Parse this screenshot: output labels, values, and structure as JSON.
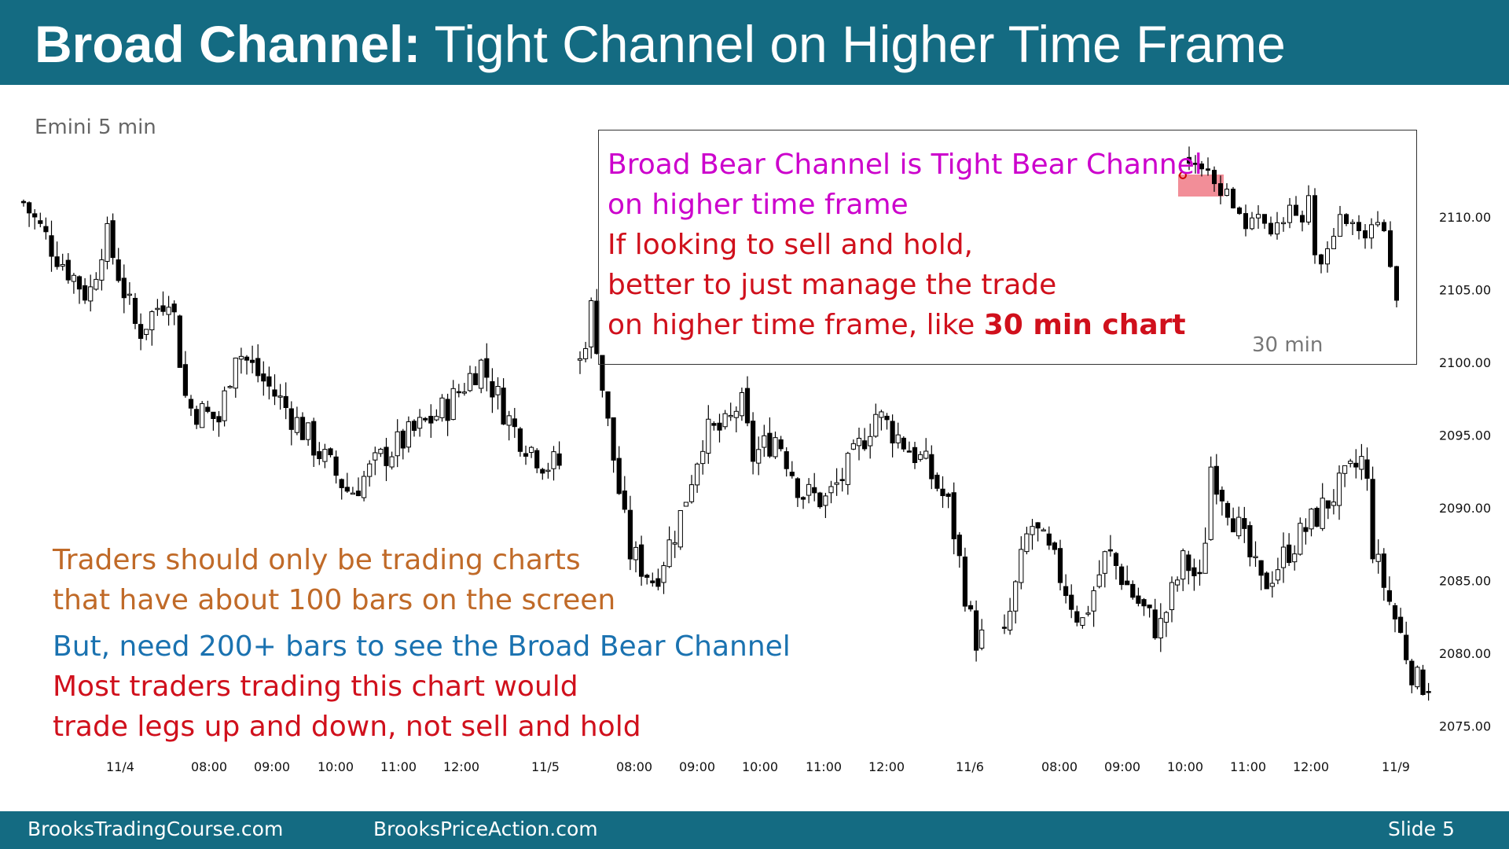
{
  "header": {
    "title_bold": "Broad Channel:",
    "title_rest": " Tight Channel on Higher Time Frame"
  },
  "ticker_label": "Emini 5 min",
  "inset": {
    "line1": "Broad Bear Channel is Tight Bear Channel",
    "line2": "on higher time frame",
    "line3": "If looking to sell and hold,",
    "line4": "better to just manage the trade",
    "line5_pre": "on higher time frame, like ",
    "line5_bold": "30 min chart",
    "timeframe_label": "30 min"
  },
  "notes": {
    "line1": "Traders should only be trading charts",
    "line2": "that have about 100 bars on the screen",
    "line3": "But, need 200+ bars to see the Broad Bear Channel",
    "line4": "Most traders trading this chart would",
    "line5": "trade legs up and down, not sell and hold"
  },
  "footer": {
    "left": "BrooksTradingCourse.com",
    "center": "BrooksPriceAction.com",
    "right": "Slide  5"
  },
  "colors": {
    "header_bg": "#146b82",
    "magenta": "#cc00cc",
    "red": "#d0101c",
    "orange": "#c06a28",
    "blue": "#1a72b0",
    "highlight": "#f07a86"
  },
  "chart_data": {
    "type": "candlestick",
    "title": "",
    "xlabel": "",
    "ylabel": "",
    "ylim": [
      2075.0,
      2115.0
    ],
    "y_ticks": [
      "2075.00",
      "2080.00",
      "2085.00",
      "2090.00",
      "2095.00",
      "2100.00",
      "2105.00",
      "2110.00"
    ],
    "x_ticks": [
      "11/4",
      "08:00",
      "09:00",
      "10:00",
      "11:00",
      "12:00",
      "11/5",
      "08:00",
      "09:00",
      "10:00",
      "11:00",
      "12:00",
      "11/6",
      "08:00",
      "09:00",
      "10:00",
      "11:00",
      "12:00",
      "11/9"
    ],
    "anchors": [
      [
        "11/4 07:00",
        2111
      ],
      [
        "11/4 07:30",
        2107.5
      ],
      [
        "11/4 08:00",
        2104.5
      ],
      [
        "11/4 08:15",
        2109
      ],
      [
        "11/4 08:45",
        2102
      ],
      [
        "11/4 09:15",
        2105
      ],
      [
        "11/4 09:30",
        2097
      ],
      [
        "11/4 10:00",
        2096
      ],
      [
        "11/4 10:15",
        2101
      ],
      [
        "11/4 11:00",
        2097
      ],
      [
        "11/4 12:00",
        2091
      ],
      [
        "11/4 12:30",
        2093.5
      ],
      [
        "11/4 13:30",
        2097
      ],
      [
        "11/4 14:00",
        2100
      ],
      [
        "11/4 14:30",
        2095.5
      ],
      [
        "11/4 15:00",
        2093
      ],
      [
        "11/5 07:00",
        2100
      ],
      [
        "11/5 07:15",
        2104
      ],
      [
        "11/5 07:30",
        2097
      ],
      [
        "11/5 08:00",
        2087
      ],
      [
        "11/5 08:30",
        2085
      ],
      [
        "11/5 09:00",
        2089
      ],
      [
        "11/5 09:30",
        2095
      ],
      [
        "11/5 10:00",
        2095.5
      ],
      [
        "11/5 10:15",
        2097.5
      ],
      [
        "11/5 10:30",
        2093.5
      ],
      [
        "11/5 11:00",
        2095
      ],
      [
        "11/5 11:30",
        2091
      ],
      [
        "11/5 12:00",
        2090.5
      ],
      [
        "11/5 12:30",
        2093
      ],
      [
        "11/5 13:00",
        2096.5
      ],
      [
        "11/5 14:00",
        2093
      ],
      [
        "11/5 14:30",
        2090
      ],
      [
        "11/5 15:00",
        2081
      ],
      [
        "11/6 07:00",
        2081
      ],
      [
        "11/6 07:30",
        2089
      ],
      [
        "11/6 08:00",
        2086
      ],
      [
        "11/6 08:30",
        2082
      ],
      [
        "11/6 09:00",
        2087
      ],
      [
        "11/6 09:30",
        2084
      ],
      [
        "11/6 10:00",
        2081.5
      ],
      [
        "11/6 10:30",
        2086.5
      ],
      [
        "11/6 10:50",
        2084.5
      ],
      [
        "11/6 11:00",
        2093
      ],
      [
        "11/6 11:30",
        2089
      ],
      [
        "11/6 12:00",
        2084.5
      ],
      [
        "11/6 12:30",
        2087
      ],
      [
        "11/6 14:00",
        2093.5
      ],
      [
        "11/6 14:10",
        2087
      ],
      [
        "11/6 15:00",
        2078
      ]
    ],
    "inset_30min": {
      "label": "30 min",
      "trend": "tight bear channel, roughly 2114 down to 2103"
    }
  }
}
